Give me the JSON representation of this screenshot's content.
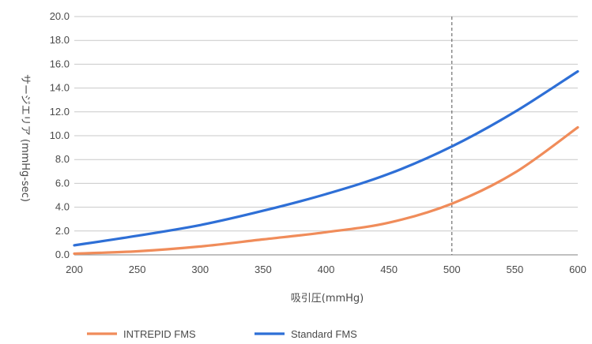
{
  "chart_data": {
    "type": "line",
    "xlabel": "吸引圧(mmHg)",
    "ylabel": "サージエリア (mmHg-sec)",
    "xlim": [
      200,
      600
    ],
    "ylim": [
      0,
      20
    ],
    "x_ticks": [
      200,
      250,
      300,
      350,
      400,
      450,
      500,
      550,
      600
    ],
    "y_ticks": [
      "0.0",
      "2.0",
      "4.0",
      "6.0",
      "8.0",
      "10.0",
      "12.0",
      "14.0",
      "16.0",
      "18.0",
      "20.0"
    ],
    "grid": "horizontal",
    "reference_line_x": 500,
    "legend_position": "bottom",
    "series": [
      {
        "name": "INTREPID FMS",
        "color": "#f08c5a",
        "x": [
          200,
          250,
          300,
          350,
          400,
          450,
          500,
          550,
          600
        ],
        "y": [
          0.1,
          0.3,
          0.7,
          1.3,
          1.9,
          2.7,
          4.3,
          6.9,
          10.7
        ]
      },
      {
        "name": "Standard FMS",
        "color": "#2e6fd6",
        "x": [
          200,
          250,
          300,
          350,
          400,
          450,
          500,
          550,
          600
        ],
        "y": [
          0.8,
          1.6,
          2.5,
          3.7,
          5.1,
          6.8,
          9.1,
          12.0,
          15.4
        ]
      }
    ]
  }
}
